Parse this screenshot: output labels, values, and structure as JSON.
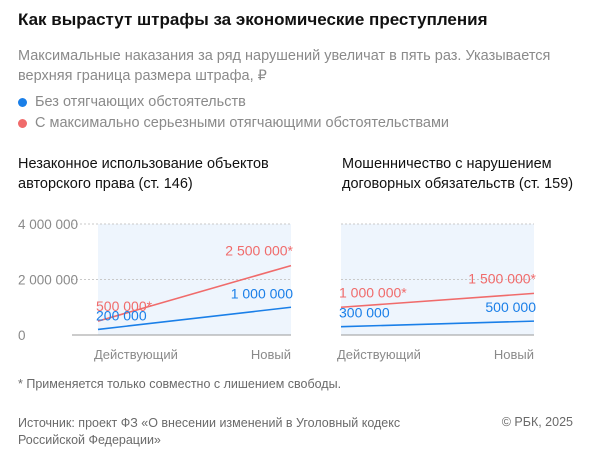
{
  "title": "Как вырастут штрафы за экономические преступления",
  "subtitle": "Максимальные наказания за ряд нарушений увеличат в пять раз. Указывается верхняя граница размера штрафа, ₽",
  "legend": [
    {
      "label": "Без отягчающих обстоятельств",
      "color": "#1a7fe8"
    },
    {
      "label": "С максимально серьезными отягчающими обстоятельствами",
      "color": "#f06b6b"
    }
  ],
  "colors": {
    "blue": "#1a7fe8",
    "red": "#f06b6b",
    "panel_bg": "#eef5fd",
    "grid": "#c9c9c9"
  },
  "chart_data": [
    {
      "type": "line",
      "title": "Незаконное использование объектов авторского права (ст. 146)",
      "categories": [
        "Действующий",
        "Новый"
      ],
      "y_ticks": [
        "4 000 000",
        "2 000 000",
        "0"
      ],
      "ylim": [
        0,
        4000000
      ],
      "series": [
        {
          "values": [
            500000,
            2500000
          ],
          "labels": [
            "500 000*",
            "2 500 000*"
          ],
          "color": "#f06b6b"
        },
        {
          "values": [
            200000,
            1000000
          ],
          "labels": [
            "200 000",
            "1 000 000"
          ],
          "color": "#1a7fe8"
        }
      ]
    },
    {
      "type": "line",
      "title": "Мошенничество с нарушением договорных обязательств (ст. 159)",
      "categories": [
        "Действующий",
        "Новый"
      ],
      "ylim": [
        0,
        4000000
      ],
      "series": [
        {
          "values": [
            1000000,
            1500000
          ],
          "labels": [
            "1 000 000*",
            "1 500 000*"
          ],
          "color": "#f06b6b"
        },
        {
          "values": [
            300000,
            500000
          ],
          "labels": [
            "300 000",
            "500 000"
          ],
          "color": "#1a7fe8"
        }
      ]
    }
  ],
  "footnote": "* Применяется только совместно с лишением свободы.",
  "source": "Источник: проект ФЗ «О внесении изменений в Уголовный кодекс Российской Федерации»",
  "copyright": "© РБК, 2025"
}
